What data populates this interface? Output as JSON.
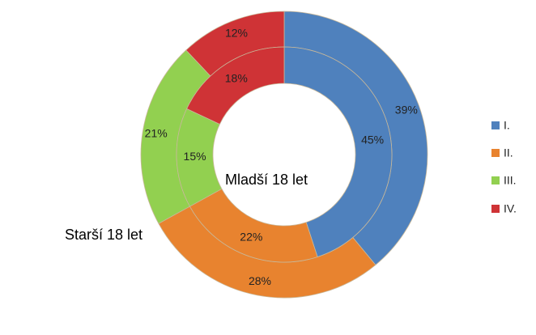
{
  "chart_data": {
    "type": "doughnut",
    "categories": [
      "I.",
      "II.",
      "III.",
      "IV."
    ],
    "colors": [
      "#4f81bd",
      "#e8832f",
      "#92d050",
      "#cf3336"
    ],
    "series": [
      {
        "name": "Starší 18 let",
        "values": [
          39,
          28,
          21,
          12
        ],
        "value_labels": [
          "39%",
          "28%",
          "21%",
          "12%"
        ]
      },
      {
        "name": "Mladší 18 let",
        "values": [
          45,
          22,
          15,
          18
        ],
        "value_labels": [
          "45%",
          "22%",
          "15%",
          "18%"
        ]
      }
    ],
    "legend": "right"
  }
}
